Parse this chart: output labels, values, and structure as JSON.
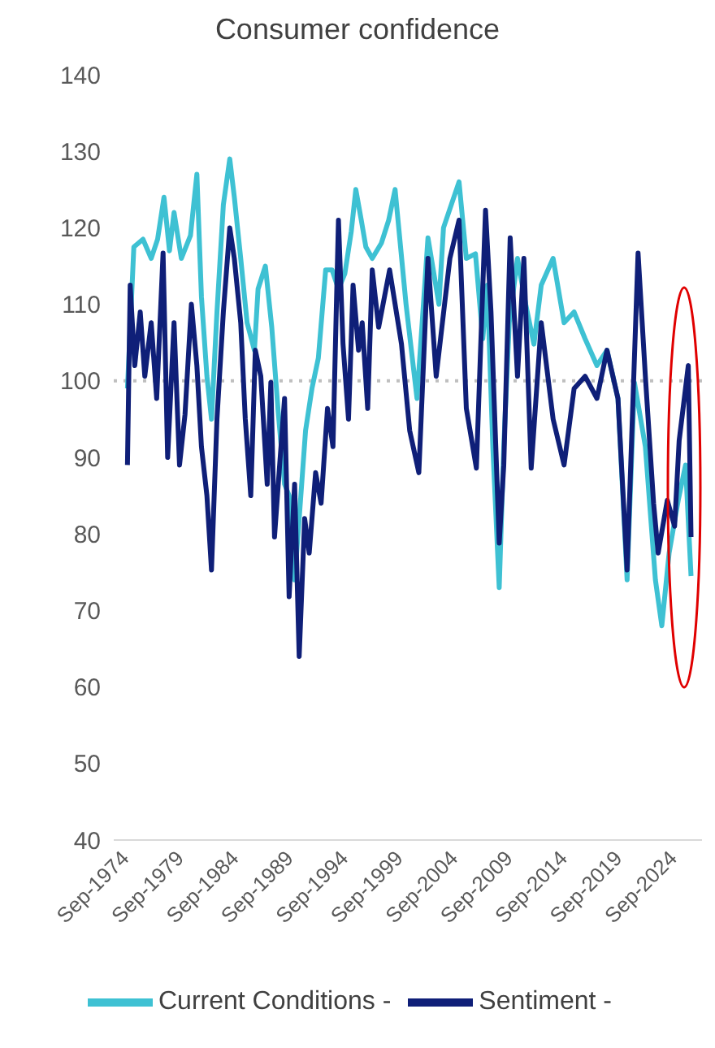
{
  "chart_data": {
    "type": "line",
    "title": "Consumer confidence",
    "xlim": [
      "1973-03",
      "2026-11"
    ],
    "xticks": [
      {
        "value": "1974-09",
        "label": "Sep-1974"
      },
      {
        "value": "1979-09",
        "label": "Sep-1979"
      },
      {
        "value": "1984-09",
        "label": "Sep-1984"
      },
      {
        "value": "1989-09",
        "label": "Sep-1989"
      },
      {
        "value": "1994-09",
        "label": "Sep-1994"
      },
      {
        "value": "1999-09",
        "label": "Sep-1999"
      },
      {
        "value": "2004-09",
        "label": "Sep-2004"
      },
      {
        "value": "2009-09",
        "label": "Sep-2009"
      },
      {
        "value": "2014-09",
        "label": "Sep-2014"
      },
      {
        "value": "2019-09",
        "label": "Sep-2019"
      },
      {
        "value": "2024-09",
        "label": "Sep-2024"
      }
    ],
    "ylim": [
      40,
      140
    ],
    "yticks": [
      40,
      50,
      60,
      70,
      80,
      90,
      100,
      110,
      120,
      130,
      140
    ],
    "grid": false,
    "legend": "bottom",
    "marker": "none",
    "line_style": "solid",
    "ref_lines": [
      {
        "axis": "y",
        "value": 100,
        "color": "#bfbfbf",
        "line_style": "dotted"
      }
    ],
    "series": [
      {
        "name": "Current Conditions -",
        "color": "#3ec1d3",
        "x": [
          "1974-06",
          "1975-01",
          "1975-11",
          "1976-08",
          "1977-03",
          "1977-10",
          "1978-04",
          "1978-09",
          "1979-05",
          "1980-03",
          "1980-10",
          "1981-03",
          "1981-09",
          "1982-02",
          "1982-08",
          "1983-03",
          "1983-10",
          "1984-03",
          "1984-10",
          "1985-05",
          "1986-01",
          "1986-05",
          "1987-01",
          "1987-08",
          "1988-03",
          "1988-10",
          "1989-03",
          "1989-09",
          "1990-02",
          "1990-09",
          "1991-04",
          "1991-11",
          "1992-07",
          "1993-02",
          "1993-09",
          "1994-04",
          "1994-11",
          "1995-04",
          "1995-10",
          "1996-03",
          "1996-10",
          "1997-08",
          "1998-04",
          "1998-11",
          "1999-11",
          "2000-11",
          "2001-11",
          "2002-11",
          "2003-04",
          "2004-09",
          "2005-05",
          "2006-03",
          "2006-11",
          "2007-04",
          "2007-10",
          "2008-05",
          "2008-10",
          "2009-04",
          "2010-01",
          "2010-10",
          "2011-07",
          "2012-03",
          "2013-04",
          "2014-04",
          "2015-03",
          "2016-03",
          "2017-04",
          "2018-03",
          "2019-03",
          "2020-01",
          "2020-09",
          "2021-09",
          "2022-08",
          "2023-03",
          "2023-11",
          "2024-09",
          "2025-05",
          "2025-11"
        ],
        "values": [
          99,
          117.5,
          118.5,
          116,
          118.5,
          124,
          117,
          122,
          116,
          119,
          127,
          111,
          100.6,
          95,
          109,
          123,
          129,
          124,
          116,
          107.6,
          104,
          112,
          115,
          107,
          96,
          86.5,
          85,
          74,
          82,
          93.5,
          99,
          103,
          114.5,
          114.5,
          112,
          114,
          119.5,
          125,
          121,
          117.5,
          116,
          118,
          121,
          125,
          110,
          97.7,
          118.7,
          110,
          120,
          126,
          116,
          116.6,
          105.5,
          112.5,
          91.4,
          73,
          91.4,
          107.6,
          116,
          110,
          104.8,
          112.5,
          116,
          107.6,
          109,
          105.5,
          102,
          104,
          97.7,
          74,
          99.8,
          91.4,
          74,
          68,
          77.5,
          84.4,
          89,
          74.5
        ]
      },
      {
        "name": "Sentiment -",
        "color": "#0f1f78",
        "x": [
          "1974-06",
          "1974-09",
          "1975-02",
          "1975-08",
          "1976-01",
          "1976-08",
          "1977-02",
          "1977-09",
          "1978-02",
          "1978-09",
          "1979-03",
          "1979-09",
          "1980-04",
          "1980-10",
          "1981-03",
          "1981-09",
          "1982-02",
          "1982-08",
          "1983-03",
          "1983-10",
          "1984-03",
          "1984-10",
          "1985-03",
          "1985-09",
          "1986-02",
          "1986-08",
          "1987-03",
          "1987-07",
          "1987-11",
          "1988-04",
          "1988-10",
          "1989-03",
          "1989-09",
          "1990-02",
          "1990-08",
          "1991-01",
          "1991-08",
          "1992-02",
          "1992-09",
          "1993-03",
          "1993-09",
          "1994-02",
          "1994-08",
          "1995-01",
          "1995-07",
          "1995-11",
          "1996-05",
          "1996-10",
          "1997-05",
          "1998-05",
          "1999-06",
          "2000-03",
          "2001-01",
          "2001-11",
          "2002-08",
          "2003-11",
          "2004-09",
          "2005-05",
          "2006-04",
          "2007-02",
          "2007-08",
          "2008-05",
          "2008-10",
          "2009-05",
          "2010-01",
          "2010-08",
          "2011-04",
          "2012-03",
          "2013-04",
          "2014-04",
          "2015-03",
          "2016-03",
          "2017-04",
          "2018-03",
          "2019-03",
          "2020-01",
          "2021-01",
          "2021-09",
          "2022-06",
          "2022-11",
          "2023-09",
          "2024-05",
          "2024-10",
          "2025-08",
          "2025-11"
        ],
        "values": [
          89,
          112.5,
          102,
          109,
          100.6,
          107.6,
          97.7,
          116.7,
          90,
          107.6,
          89,
          95.6,
          110,
          102,
          91.4,
          85,
          75.3,
          95,
          109,
          120,
          116,
          107.6,
          95,
          85,
          104,
          100.6,
          86.5,
          99.8,
          79.6,
          88,
          97.7,
          71.8,
          86.5,
          64,
          82,
          77.5,
          88,
          84,
          96.4,
          91.4,
          121,
          104.8,
          95,
          112.5,
          104,
          107.6,
          96.4,
          114.5,
          107,
          114.5,
          104.8,
          93.5,
          88,
          116,
          100.6,
          116,
          121,
          96.4,
          88.6,
          122.3,
          109,
          78.8,
          89,
          118.7,
          100.6,
          116,
          88.6,
          107.6,
          95,
          89,
          99,
          100.6,
          97.7,
          104,
          97.7,
          75.3,
          116.7,
          100.6,
          84,
          77.5,
          84.4,
          81,
          92.2,
          102,
          79.6
        ]
      }
    ]
  }
}
